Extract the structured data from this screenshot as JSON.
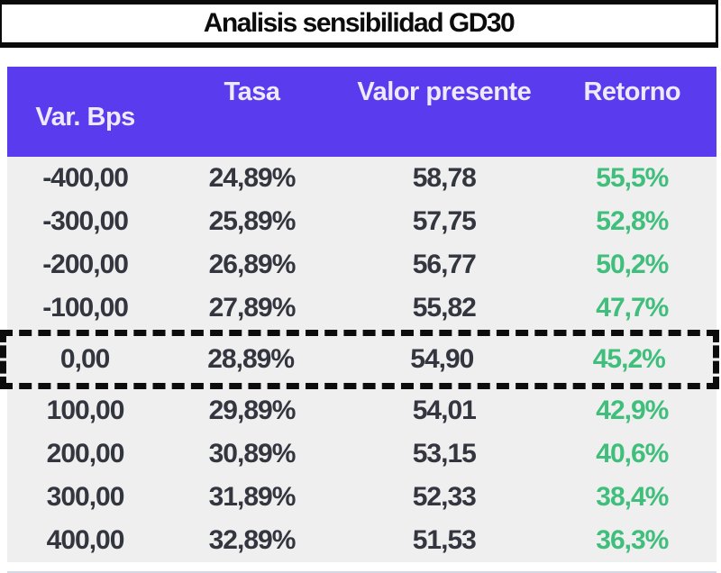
{
  "title": "Analisis sensibilidad GD30",
  "table": {
    "columns": [
      "Var. Bps",
      "Tasa",
      "Valor presente",
      "Retorno"
    ],
    "rows": [
      {
        "var_bps": "-400,00",
        "tasa": "24,89%",
        "valor_presente": "58,78",
        "retorno": "55,5%",
        "highlighted": false
      },
      {
        "var_bps": "-300,00",
        "tasa": "25,89%",
        "valor_presente": "57,75",
        "retorno": "52,8%",
        "highlighted": false
      },
      {
        "var_bps": "-200,00",
        "tasa": "26,89%",
        "valor_presente": "56,77",
        "retorno": "50,2%",
        "highlighted": false
      },
      {
        "var_bps": "-100,00",
        "tasa": "27,89%",
        "valor_presente": "55,82",
        "retorno": "47,7%",
        "highlighted": false
      },
      {
        "var_bps": "0,00",
        "tasa": "28,89%",
        "valor_presente": "54,90",
        "retorno": "45,2%",
        "highlighted": true
      },
      {
        "var_bps": "100,00",
        "tasa": "29,89%",
        "valor_presente": "54,01",
        "retorno": "42,9%",
        "highlighted": false
      },
      {
        "var_bps": "200,00",
        "tasa": "30,89%",
        "valor_presente": "53,15",
        "retorno": "40,6%",
        "highlighted": false
      },
      {
        "var_bps": "300,00",
        "tasa": "31,89%",
        "valor_presente": "52,33",
        "retorno": "38,4%",
        "highlighted": false
      },
      {
        "var_bps": "400,00",
        "tasa": "32,89%",
        "valor_presente": "51,53",
        "retorno": "36,3%",
        "highlighted": false
      }
    ]
  },
  "chart_data": {
    "type": "table",
    "title": "Analisis sensibilidad GD30",
    "columns": [
      "Var. Bps",
      "Tasa",
      "Valor presente",
      "Retorno"
    ],
    "rows": [
      [
        "-400,00",
        "24,89%",
        "58,78",
        "55,5%"
      ],
      [
        "-300,00",
        "25,89%",
        "57,75",
        "52,8%"
      ],
      [
        "-200,00",
        "26,89%",
        "56,77",
        "50,2%"
      ],
      [
        "-100,00",
        "27,89%",
        "55,82",
        "47,7%"
      ],
      [
        "0,00",
        "28,89%",
        "54,90",
        "45,2%"
      ],
      [
        "100,00",
        "29,89%",
        "54,01",
        "42,9%"
      ],
      [
        "200,00",
        "30,89%",
        "53,15",
        "40,6%"
      ],
      [
        "300,00",
        "31,89%",
        "52,33",
        "38,4%"
      ],
      [
        "400,00",
        "32,89%",
        "51,53",
        "36,3%"
      ]
    ],
    "highlighted_row": [
      "0,00",
      "28,89%",
      "54,90",
      "45,2%"
    ],
    "layout": {
      "header_position": "top",
      "highlight_style": "black-dashed-border"
    }
  },
  "colors": {
    "header_bg": "#5b3bee",
    "header_text": "#efe9fc",
    "body_bg": "#f0efef",
    "data_text": "#33363f",
    "retorno_text": "#3fbe7c",
    "border_black": "#0a0a0a"
  }
}
